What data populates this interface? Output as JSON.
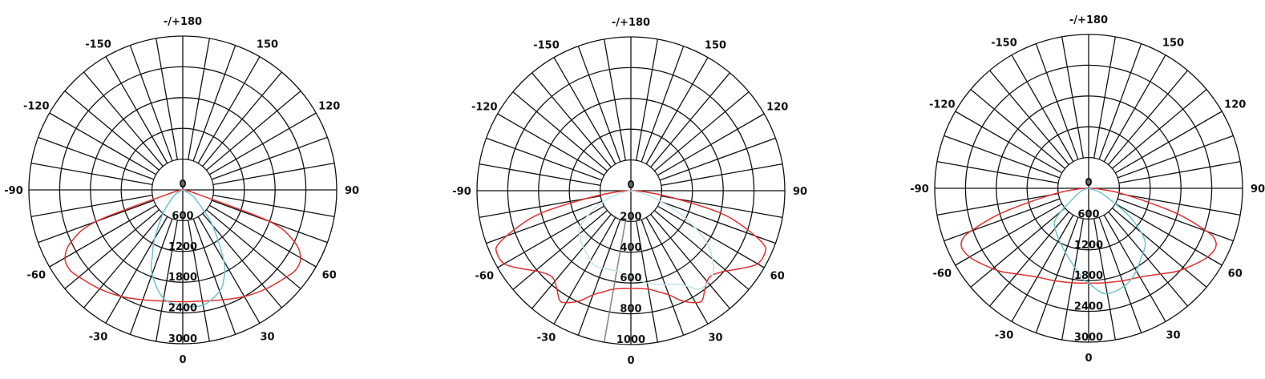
{
  "chart_data": [
    {
      "type": "polar",
      "angle_labels": [
        {
          "angle": 180,
          "text": "-/+180"
        },
        {
          "angle": -150,
          "text": "-150"
        },
        {
          "angle": 150,
          "text": "150"
        },
        {
          "angle": -120,
          "text": "-120"
        },
        {
          "angle": 120,
          "text": "120"
        },
        {
          "angle": -90,
          "text": "-90"
        },
        {
          "angle": 90,
          "text": "90"
        },
        {
          "angle": -60,
          "text": "-60"
        },
        {
          "angle": 60,
          "text": "60"
        },
        {
          "angle": -30,
          "text": "-30"
        },
        {
          "angle": 30,
          "text": "30"
        },
        {
          "angle": 0,
          "text": "0"
        }
      ],
      "center_label": "0",
      "ring_labels": [
        "600",
        "1200",
        "1800",
        "2400",
        "3000"
      ],
      "rmax": 3000,
      "grid_angle_step": 10,
      "grid": true,
      "series": [
        {
          "color": "#e03030",
          "angles": [
            -90,
            -86,
            -82,
            -78,
            -74,
            -70,
            -65,
            -60,
            -55,
            -50,
            -40,
            -30,
            -20,
            -10,
            0,
            10,
            20,
            30,
            40,
            50,
            55,
            60,
            65,
            70,
            74,
            78,
            82,
            86,
            90
          ],
          "values": [
            0,
            30,
            60,
            100,
            300,
            1800,
            2400,
            2650,
            2700,
            2640,
            2520,
            2400,
            2280,
            2200,
            2180,
            2200,
            2280,
            2400,
            2520,
            2640,
            2700,
            2650,
            2400,
            1800,
            300,
            100,
            60,
            30,
            0
          ]
        },
        {
          "color": "#6cc4d0",
          "angles": [
            -90,
            -60,
            -50,
            -40,
            -30,
            -25,
            -20,
            -10,
            0,
            10,
            20,
            25,
            30,
            40,
            50,
            60,
            90
          ],
          "values": [
            0,
            150,
            300,
            600,
            1100,
            1400,
            1750,
            2150,
            2250,
            2280,
            2100,
            1900,
            1600,
            900,
            400,
            200,
            0
          ]
        }
      ]
    },
    {
      "type": "polar",
      "angle_labels": [
        {
          "angle": 180,
          "text": "-/+180"
        },
        {
          "angle": -150,
          "text": "-150"
        },
        {
          "angle": 150,
          "text": "150"
        },
        {
          "angle": -120,
          "text": "-120"
        },
        {
          "angle": 120,
          "text": "120"
        },
        {
          "angle": -90,
          "text": "-90"
        },
        {
          "angle": 90,
          "text": "90"
        },
        {
          "angle": -60,
          "text": "-60"
        },
        {
          "angle": 60,
          "text": "60"
        },
        {
          "angle": -30,
          "text": "-30"
        },
        {
          "angle": 30,
          "text": "30"
        },
        {
          "angle": 0,
          "text": "0"
        }
      ],
      "center_label": "0",
      "ring_labels": [
        "200",
        "400",
        "600",
        "800",
        "1000"
      ],
      "rmax": 1000,
      "grid_angle_step": 10,
      "grid": true,
      "reference_line_angle": -10,
      "series": [
        {
          "color": "#e03030",
          "angles": [
            -90,
            -85,
            -80,
            -76,
            -72,
            -68,
            -65,
            -60,
            -55,
            -48,
            -42,
            -37,
            -33,
            -30,
            -25,
            -20,
            -15,
            -10,
            0,
            10,
            15,
            20,
            25,
            30,
            33,
            37,
            42,
            48,
            55,
            60,
            65,
            68,
            72,
            76,
            80,
            85,
            90
          ],
          "values": [
            0,
            100,
            300,
            600,
            780,
            930,
            960,
            950,
            880,
            790,
            760,
            800,
            850,
            840,
            790,
            720,
            680,
            650,
            635,
            650,
            680,
            720,
            790,
            840,
            850,
            800,
            760,
            790,
            880,
            950,
            960,
            930,
            780,
            600,
            300,
            100,
            0
          ]
        },
        {
          "color": "#bfe3ea",
          "angles": [
            -90,
            -75,
            -65,
            -55,
            -47,
            -35,
            -25,
            -10,
            0,
            10,
            20,
            28,
            35,
            42,
            47,
            56,
            65,
            75,
            90
          ],
          "values": [
            0,
            100,
            250,
            400,
            450,
            500,
            540,
            530,
            560,
            610,
            650,
            690,
            780,
            770,
            735,
            590,
            350,
            120,
            0
          ]
        }
      ]
    },
    {
      "type": "polar",
      "angle_labels": [
        {
          "angle": 180,
          "text": "-/+180"
        },
        {
          "angle": -150,
          "text": "-150"
        },
        {
          "angle": 150,
          "text": "150"
        },
        {
          "angle": -120,
          "text": "-120"
        },
        {
          "angle": 120,
          "text": "120"
        },
        {
          "angle": -90,
          "text": "-90"
        },
        {
          "angle": 90,
          "text": "90"
        },
        {
          "angle": -60,
          "text": "-60"
        },
        {
          "angle": 60,
          "text": "60"
        },
        {
          "angle": -30,
          "text": "-30"
        },
        {
          "angle": 30,
          "text": "30"
        },
        {
          "angle": 0,
          "text": "0"
        }
      ],
      "center_label": "0",
      "ring_labels": [
        "600",
        "1200",
        "1800",
        "2400",
        "3000"
      ],
      "rmax": 3000,
      "grid_angle_step": 10,
      "grid": true,
      "series": [
        {
          "color": "#e03030",
          "angles": [
            -90,
            -86,
            -82,
            -78,
            -74,
            -70,
            -68,
            -65,
            -60,
            -55,
            -47,
            -40,
            -30,
            -20,
            -10,
            0,
            10,
            20,
            30,
            40,
            47,
            55,
            60,
            65,
            68,
            70,
            74,
            78,
            82,
            86,
            90
          ],
          "values": [
            0,
            200,
            550,
            1000,
            1800,
            2450,
            2650,
            2730,
            2680,
            2560,
            2370,
            2180,
            2000,
            1920,
            1870,
            1850,
            1870,
            1920,
            2000,
            2180,
            2370,
            2560,
            2680,
            2730,
            2650,
            2450,
            1800,
            1000,
            550,
            200,
            0
          ]
        },
        {
          "color": "#6cc4d0",
          "angles": [
            -90,
            -70,
            -55,
            -47,
            -36,
            -19,
            -4,
            0,
            9,
            20,
            28,
            36,
            47,
            55,
            60,
            70,
            90
          ],
          "values": [
            0,
            150,
            420,
            880,
            1070,
            1350,
            1750,
            1850,
            2080,
            2030,
            1900,
            1720,
            1500,
            1000,
            570,
            250,
            0
          ]
        }
      ]
    }
  ]
}
